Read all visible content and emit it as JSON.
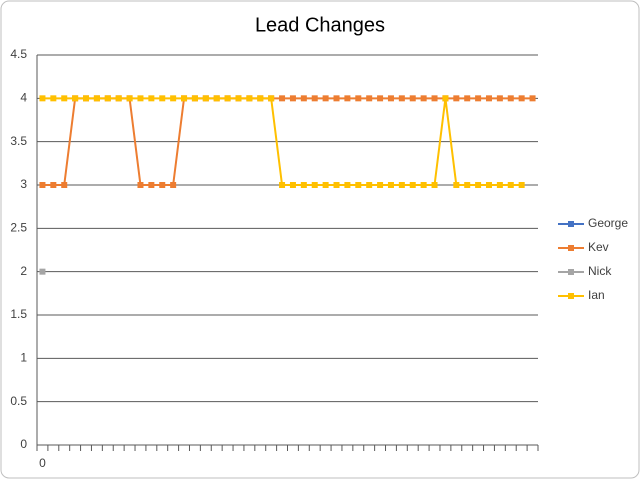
{
  "chart_data": {
    "type": "line",
    "title": "Lead Changes",
    "categories": [
      "0",
      null,
      null,
      null,
      null,
      null,
      null,
      null,
      null,
      null,
      null,
      null,
      null,
      null,
      null,
      null,
      null,
      null,
      null,
      null,
      null,
      null,
      null,
      null,
      null,
      null,
      null,
      null,
      null,
      null,
      null,
      null,
      null,
      null,
      null,
      null,
      null,
      null,
      null,
      null,
      null,
      null,
      null,
      null,
      null,
      null
    ],
    "series": [
      {
        "name": "George",
        "color": "#4472c4",
        "values": [
          null,
          null,
          null,
          null,
          null,
          null,
          null,
          null,
          null,
          null,
          null,
          null,
          null,
          null,
          null,
          null,
          null,
          null,
          null,
          null,
          null,
          null,
          null,
          null,
          null,
          null,
          null,
          null,
          null,
          null,
          null,
          null,
          null,
          null,
          null,
          null,
          null,
          null,
          null,
          null,
          null,
          null,
          null,
          null,
          null,
          null
        ]
      },
      {
        "name": "Kev",
        "color": "#ed7d31",
        "values": [
          3,
          3,
          3,
          4,
          4,
          4,
          4,
          4,
          4,
          3,
          3,
          3,
          3,
          4,
          4,
          4,
          4,
          4,
          4,
          4,
          4,
          4,
          4,
          4,
          4,
          4,
          4,
          4,
          4,
          4,
          4,
          4,
          4,
          4,
          4,
          4,
          4,
          4,
          4,
          4,
          4,
          4,
          4,
          4,
          4,
          4
        ]
      },
      {
        "name": "Nick",
        "color": "#a5a5a5",
        "values": [
          2,
          null,
          null,
          null,
          null,
          null,
          null,
          null,
          null,
          null,
          null,
          null,
          null,
          null,
          null,
          null,
          null,
          null,
          null,
          null,
          null,
          null,
          null,
          null,
          null,
          null,
          null,
          null,
          null,
          null,
          null,
          null,
          null,
          null,
          null,
          null,
          null,
          null,
          null,
          null,
          null,
          null,
          null,
          null,
          null,
          null
        ]
      },
      {
        "name": "Ian",
        "color": "#ffc000",
        "values": [
          4,
          4,
          4,
          4,
          4,
          4,
          4,
          4,
          4,
          4,
          4,
          4,
          4,
          4,
          4,
          4,
          4,
          4,
          4,
          4,
          4,
          4,
          3,
          3,
          3,
          3,
          3,
          3,
          3,
          3,
          3,
          3,
          3,
          3,
          3,
          3,
          3,
          4,
          3,
          3,
          3,
          3,
          3,
          3,
          3,
          null
        ]
      }
    ],
    "ylim": [
      0,
      4.5
    ],
    "yticks": [
      0,
      0.5,
      1,
      1.5,
      2,
      2.5,
      3,
      3.5,
      4,
      4.5
    ],
    "grid": true,
    "legend": "right"
  }
}
